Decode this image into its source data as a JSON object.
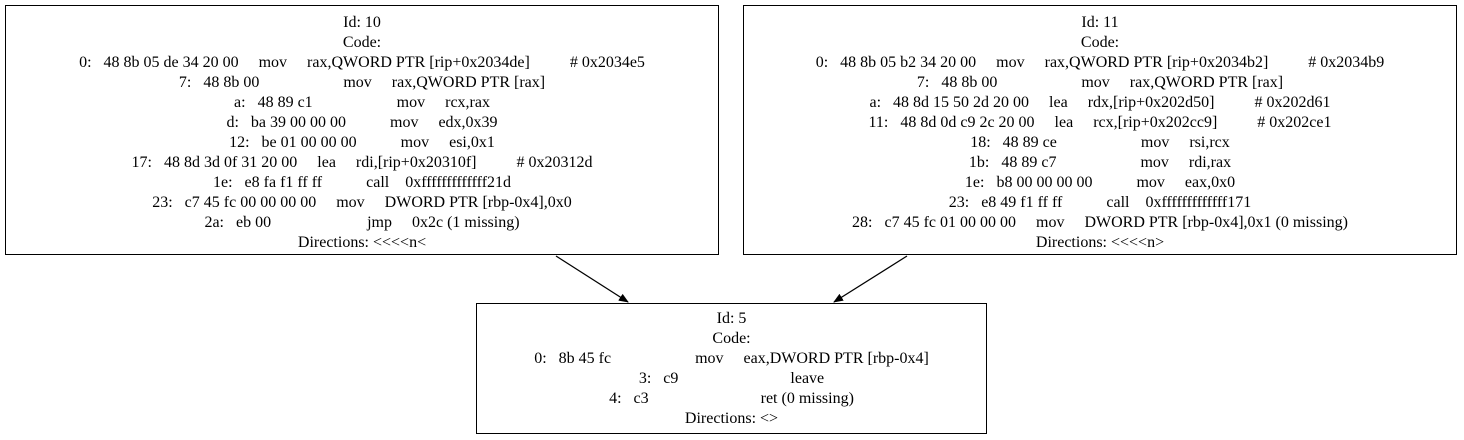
{
  "nodes": [
    {
      "id_label": "Id: 10",
      "code_label": "Code:",
      "lines": [
        "0:   48 8b 05 de 34 20 00     mov     rax,QWORD PTR [rip+0x2034de]          # 0x2034e5",
        "7:   48 8b 00                     mov     rax,QWORD PTR [rax]",
        "a:   48 89 c1                     mov     rcx,rax",
        "d:   ba 39 00 00 00           mov     edx,0x39",
        "12:   be 01 00 00 00           mov     esi,0x1",
        "17:   48 8d 3d 0f 31 20 00     lea     rdi,[rip+0x20310f]          # 0x20312d",
        "1e:   e8 fa f1 ff ff           call    0xfffffffffffff21d",
        "23:   c7 45 fc 00 00 00 00     mov     DWORD PTR [rbp-0x4],0x0",
        "2a:   eb 00                        jmp     0x2c (1 missing)"
      ],
      "directions": "Directions: <<<<n<"
    },
    {
      "id_label": "Id: 11",
      "code_label": "Code:",
      "lines": [
        "0:   48 8b 05 b2 34 20 00     mov     rax,QWORD PTR [rip+0x2034b2]          # 0x2034b9",
        "7:   48 8b 00                     mov     rax,QWORD PTR [rax]",
        "a:   48 8d 15 50 2d 20 00     lea     rdx,[rip+0x202d50]          # 0x202d61",
        "11:   48 8d 0d c9 2c 20 00     lea     rcx,[rip+0x202cc9]          # 0x202ce1",
        "18:   48 89 ce                     mov     rsi,rcx",
        "1b:   48 89 c7                     mov     rdi,rax",
        "1e:   b8 00 00 00 00           mov     eax,0x0",
        "23:   e8 49 f1 ff ff           call    0xfffffffffffff171",
        "28:   c7 45 fc 01 00 00 00     mov     DWORD PTR [rbp-0x4],0x1 (0 missing)"
      ],
      "directions": "Directions: <<<<n>"
    },
    {
      "id_label": "Id: 5",
      "code_label": "Code:",
      "lines": [
        "0:   8b 45 fc                     mov     eax,DWORD PTR [rbp-0x4]",
        "3:   c9                            leave",
        "4:   c3                            ret (0 missing)"
      ],
      "directions": "Directions: <>"
    }
  ],
  "edges": [
    {
      "from": "Id: 10",
      "to": "Id: 5"
    },
    {
      "from": "Id: 11",
      "to": "Id: 5"
    }
  ]
}
